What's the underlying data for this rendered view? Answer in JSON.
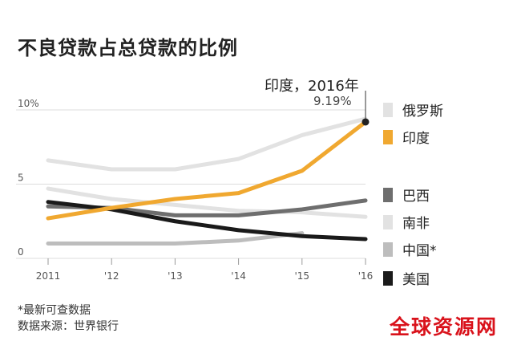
{
  "header": {
    "title": "不良贷款占总贷款的比例"
  },
  "annotation": {
    "label": "印度，2016年",
    "value": "9.19%"
  },
  "legend": [
    {
      "name": "俄罗斯",
      "color": "#e2e2e2"
    },
    {
      "name": "印度",
      "color": "#f0a830"
    },
    {
      "name": "巴西",
      "color": "#6e6e6e"
    },
    {
      "name": "南非",
      "color": "#e2e2e2"
    },
    {
      "name": "中国*",
      "color": "#bdbdbd"
    },
    {
      "name": "美国",
      "color": "#1a1a1a"
    }
  ],
  "footnote": {
    "line1": "*最新可查数据",
    "line2": "数据来源：世界银行"
  },
  "watermark": "全球资源网",
  "chart_data": {
    "type": "line",
    "title": "不良贷款占总贷款的比例",
    "x": [
      "2011",
      "'12",
      "'13",
      "'14",
      "'15",
      "'16"
    ],
    "y_ticks": [
      "0",
      "5",
      "10%"
    ],
    "ylim": [
      0,
      10
    ],
    "grid": "horizontal",
    "legend_position": "right",
    "series": [
      {
        "name": "俄罗斯",
        "color": "#e2e2e2",
        "values": [
          6.6,
          6.0,
          6.0,
          6.7,
          8.3,
          9.4
        ]
      },
      {
        "name": "南非",
        "color": "#e2e2e2",
        "values": [
          4.7,
          4.0,
          3.6,
          3.2,
          3.1,
          2.8
        ]
      },
      {
        "name": "中国*",
        "color": "#bdbdbd",
        "values": [
          1.0,
          1.0,
          1.0,
          1.2,
          1.7,
          null
        ]
      },
      {
        "name": "巴西",
        "color": "#6e6e6e",
        "values": [
          3.5,
          3.4,
          2.9,
          2.9,
          3.3,
          3.9
        ]
      },
      {
        "name": "美国",
        "color": "#1a1a1a",
        "values": [
          3.8,
          3.3,
          2.5,
          1.9,
          1.5,
          1.3
        ]
      },
      {
        "name": "印度",
        "color": "#f0a830",
        "values": [
          2.7,
          3.4,
          4.0,
          4.4,
          5.9,
          9.19
        ]
      }
    ]
  }
}
